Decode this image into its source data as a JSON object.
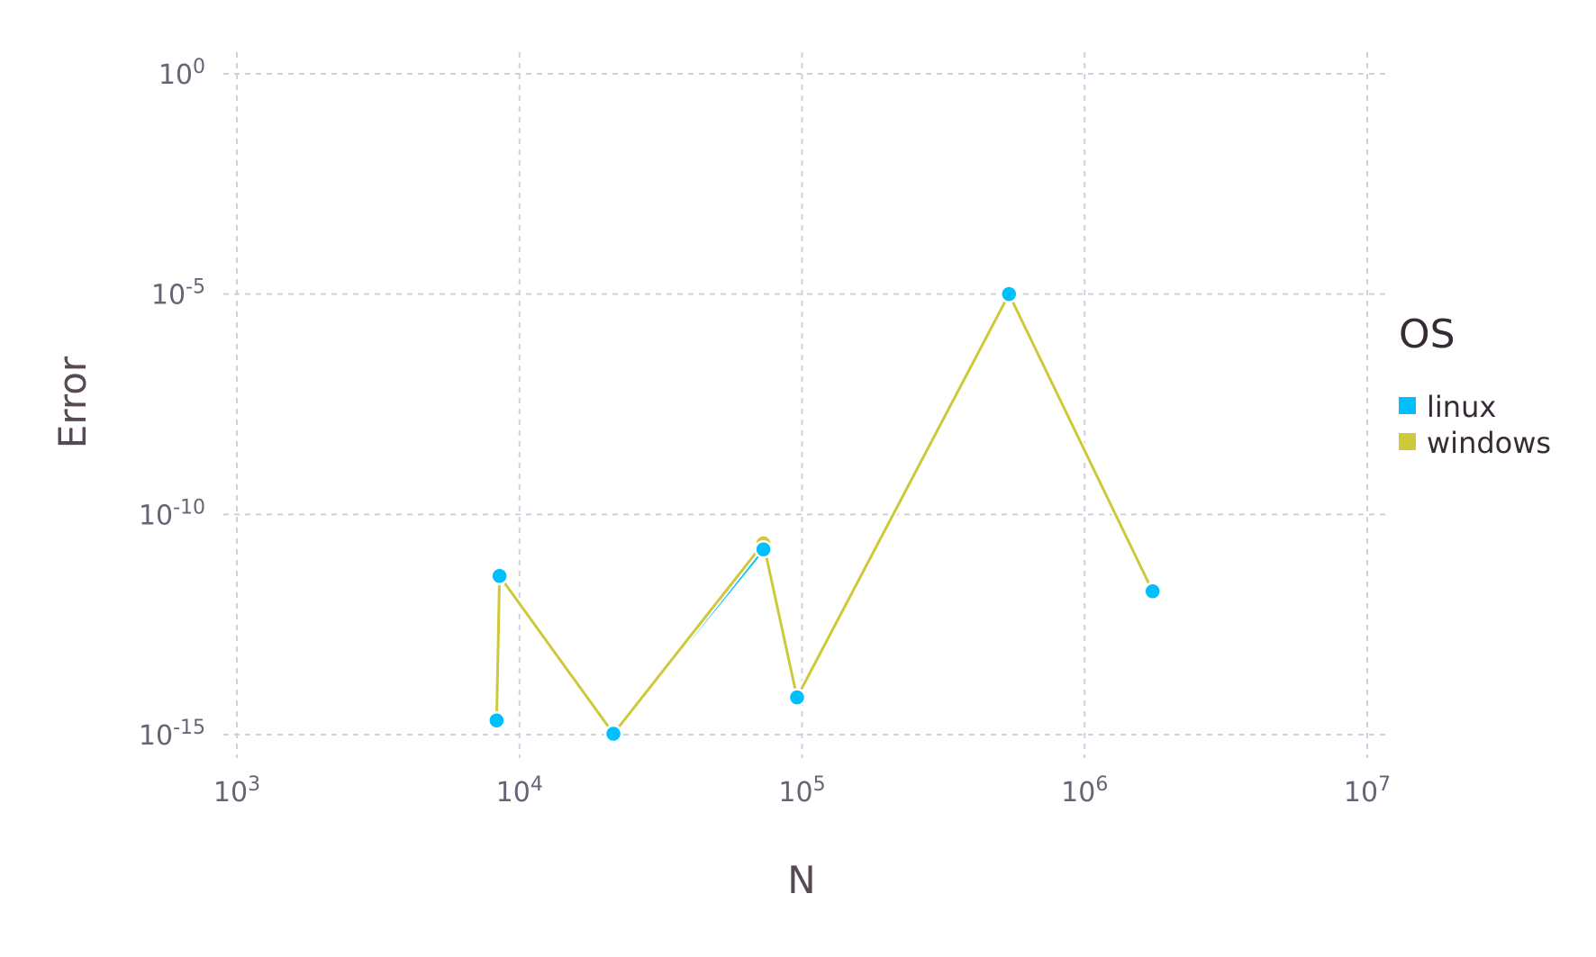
{
  "chart_data": {
    "type": "line",
    "xlabel": "N",
    "ylabel": "Error",
    "xscale": "log",
    "yscale": "log",
    "xlim": [
      1000,
      10000000
    ],
    "ylim": [
      1e-15,
      1
    ],
    "grid": true,
    "legend": {
      "title": "OS",
      "placement": "right"
    },
    "x_ticks": [
      {
        "base": "10",
        "exp": "3"
      },
      {
        "base": "10",
        "exp": "4"
      },
      {
        "base": "10",
        "exp": "5"
      },
      {
        "base": "10",
        "exp": "6"
      },
      {
        "base": "10",
        "exp": "7"
      }
    ],
    "y_ticks": [
      {
        "base": "10",
        "exp": "0"
      },
      {
        "base": "10",
        "exp": "-5"
      },
      {
        "base": "10",
        "exp": "-10"
      },
      {
        "base": "10",
        "exp": "-15"
      }
    ],
    "series": [
      {
        "name": "windows",
        "color": "#cdc93a",
        "x": [
          8300,
          8500,
          21500,
          73000,
          96000,
          540000,
          1740000
        ],
        "y": [
          2.1e-15,
          4e-12,
          1.05e-15,
          2.2e-11,
          7e-15,
          1e-05,
          1.8e-12
        ]
      },
      {
        "name": "linux",
        "color": "#00bfff",
        "x": [
          8300,
          8500,
          21500,
          73000,
          96000,
          540000,
          1740000
        ],
        "y": [
          2.1e-15,
          4e-12,
          1.05e-15,
          1.6e-11,
          7e-15,
          1e-05,
          1.8e-12
        ]
      }
    ]
  }
}
